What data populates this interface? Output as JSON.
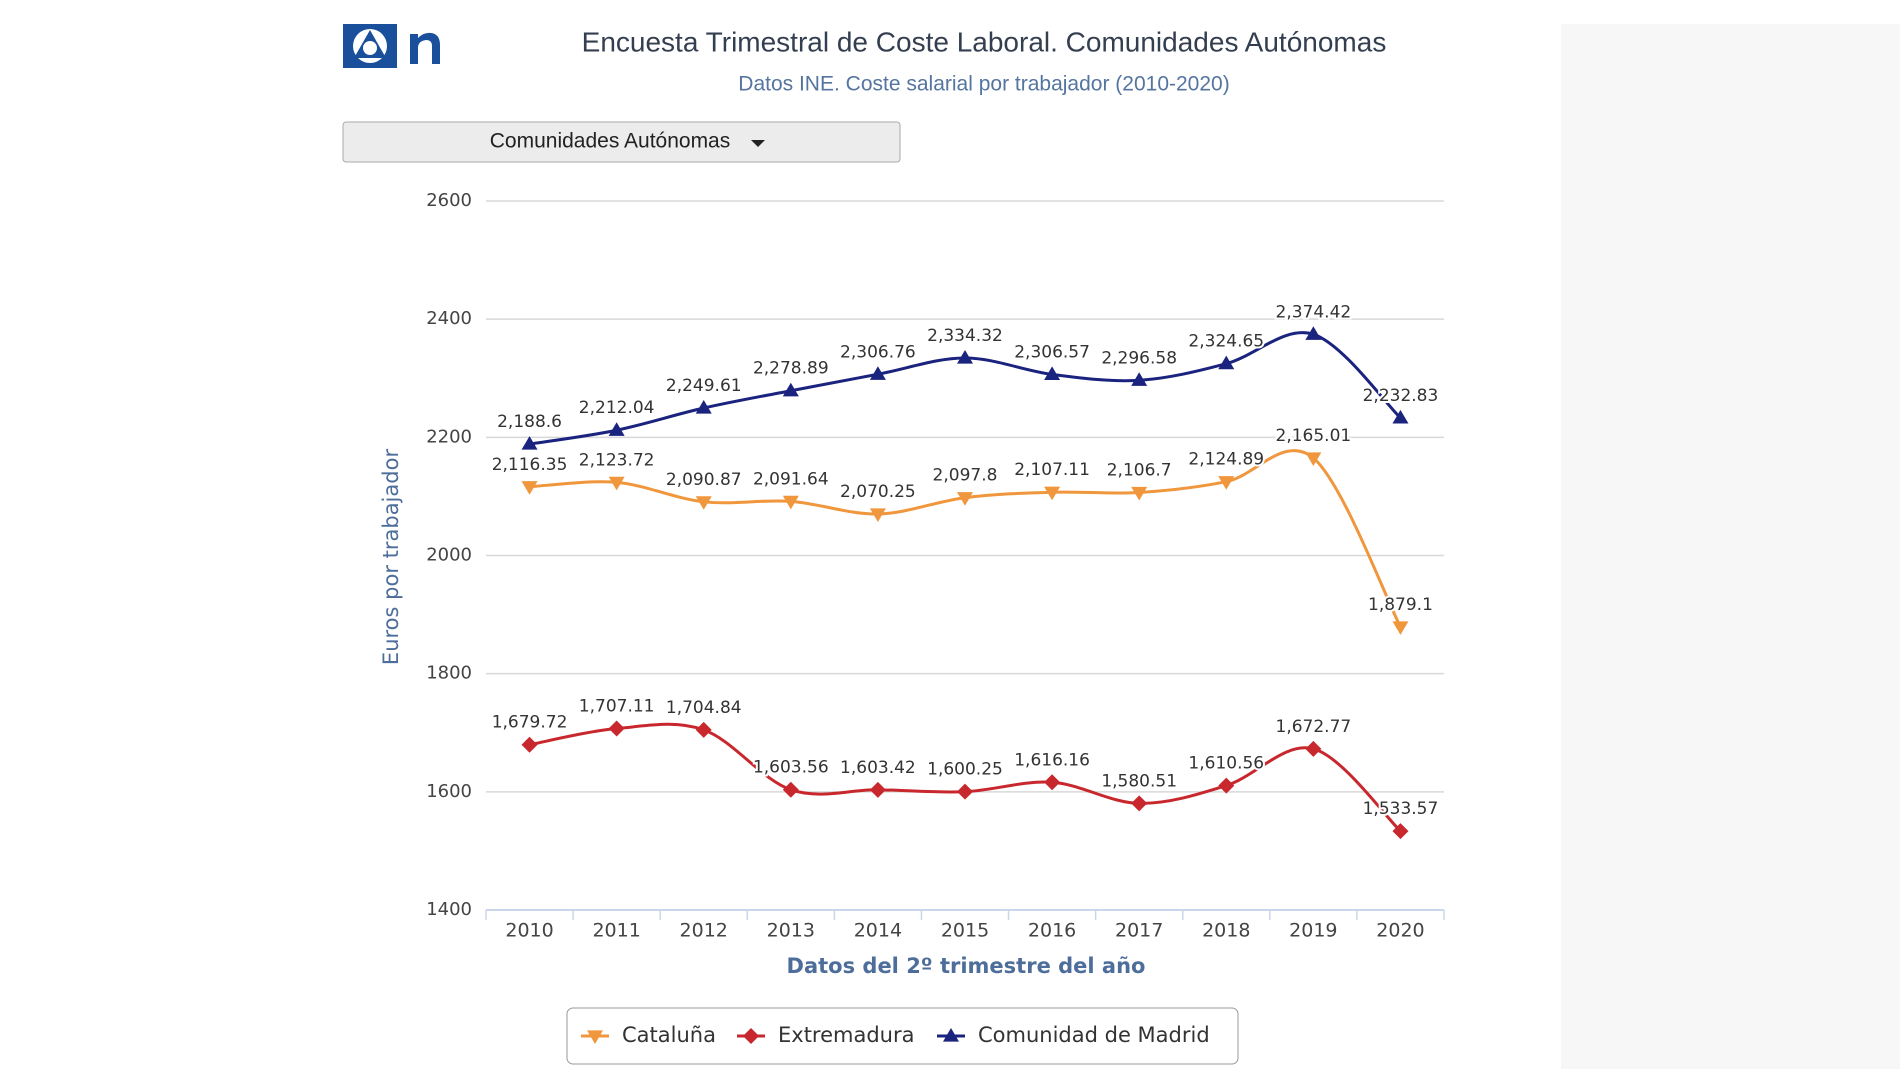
{
  "header": {
    "dropdown": "Comunidades Autónomas"
  },
  "chart_data": {
    "type": "line",
    "title": "Encuesta Trimestral de Coste Laboral. Comunidades Autónomas",
    "subtitle": "Datos INE. Coste salarial por trabajador (2010-2020)",
    "x_label": "Datos del 2º trimestre del año",
    "y_label": "Euros por trabajador",
    "categories": [
      "2010",
      "2011",
      "2012",
      "2013",
      "2014",
      "2015",
      "2016",
      "2017",
      "2018",
      "2019",
      "2020"
    ],
    "ylim": [
      1400,
      2600
    ],
    "yticks": [
      1400,
      1600,
      1800,
      2000,
      2200,
      2400,
      2600
    ],
    "grid": true,
    "smooth": true,
    "legend": "bottom",
    "series": [
      {
        "name": "Cataluña",
        "color": "#f0963c",
        "marker": "triangle-down",
        "values": [
          2116.35,
          2123.72,
          2090.87,
          2091.64,
          2070.25,
          2097.8,
          2107.11,
          2106.7,
          2124.89,
          2165.01,
          1879.1
        ],
        "value_labels": [
          "2,116.35",
          "2,123.72",
          "2,090.87",
          "2,091.64",
          "2,070.25",
          "2,097.8",
          "2,107.11",
          "2,106.7",
          "2,124.89",
          "2,165.01",
          "1,879.1"
        ]
      },
      {
        "name": "Extremadura",
        "color": "#c8282d",
        "marker": "diamond",
        "values": [
          1679.72,
          1707.11,
          1704.84,
          1603.56,
          1603.42,
          1600.25,
          1616.16,
          1580.51,
          1610.56,
          1672.77,
          1533.57
        ],
        "value_labels": [
          "1,679.72",
          "1,707.11",
          "1,704.84",
          "1,603.56",
          "1,603.42",
          "1,600.25",
          "1,616.16",
          "1,580.51",
          "1,610.56",
          "1,672.77",
          "1,533.57"
        ]
      },
      {
        "name": "Comunidad de Madrid",
        "color": "#1a237e",
        "marker": "triangle",
        "values": [
          2188.6,
          2212.04,
          2249.61,
          2278.89,
          2306.76,
          2334.32,
          2306.57,
          2296.58,
          2324.65,
          2374.42,
          2232.83
        ],
        "value_labels": [
          "2,188.6",
          "2,212.04",
          "2,249.61",
          "2,278.89",
          "2,306.76",
          "2,334.32",
          "2,306.57",
          "2,296.58",
          "2,324.65",
          "2,374.42",
          "2,232.83"
        ]
      }
    ]
  }
}
